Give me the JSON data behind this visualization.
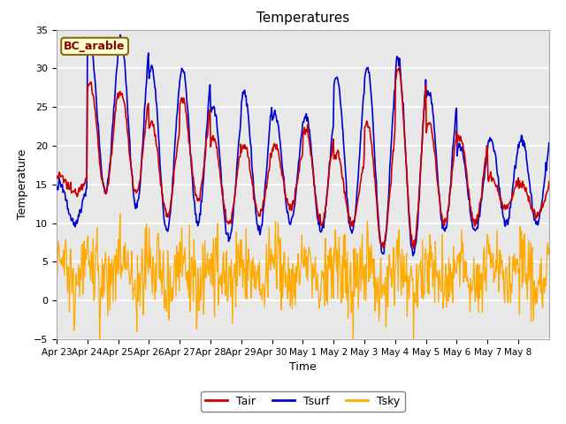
{
  "title": "Temperatures",
  "xlabel": "Time",
  "ylabel": "Temperature",
  "ylim": [
    -5,
    35
  ],
  "site_label": "BC_arable",
  "fig_facecolor": "#ffffff",
  "plot_bg_color": "#e8e8e8",
  "legend_labels": [
    "Tair",
    "Tsurf",
    "Tsky"
  ],
  "legend_colors": [
    "#cc0000",
    "#0000cc",
    "#ffaa00"
  ],
  "x_tick_labels": [
    "Apr 23",
    "Apr 24",
    "Apr 25",
    "Apr 26",
    "Apr 27",
    "Apr 28",
    "Apr 29",
    "Apr 30",
    "May 1",
    "May 2",
    "May 3",
    "May 4",
    "May 5",
    "May 6",
    "May 7",
    "May 8"
  ],
  "n_days": 16,
  "ppd": 48,
  "tair_daily_max": [
    16,
    28,
    27,
    23,
    26,
    21,
    20,
    20,
    22,
    19,
    23,
    30,
    23,
    21,
    16,
    15
  ],
  "tair_daily_min": [
    14,
    14,
    14,
    11,
    13,
    10,
    11,
    12,
    10,
    10,
    7,
    7,
    10,
    10,
    12,
    11
  ],
  "tsurf_daily_max": [
    15,
    33,
    34,
    30,
    30,
    25,
    27,
    24,
    24,
    29,
    30,
    31,
    27,
    20,
    21,
    21
  ],
  "tsurf_daily_min": [
    10,
    14,
    12,
    9,
    10,
    8,
    9,
    10,
    9,
    9,
    6,
    6,
    9,
    9,
    10,
    10
  ],
  "tsky_base": 3.5,
  "tsky_amp": 3.5,
  "tsky_noise": 2.5,
  "tsky_min_clip": -5,
  "tsky_max_clip": 14
}
